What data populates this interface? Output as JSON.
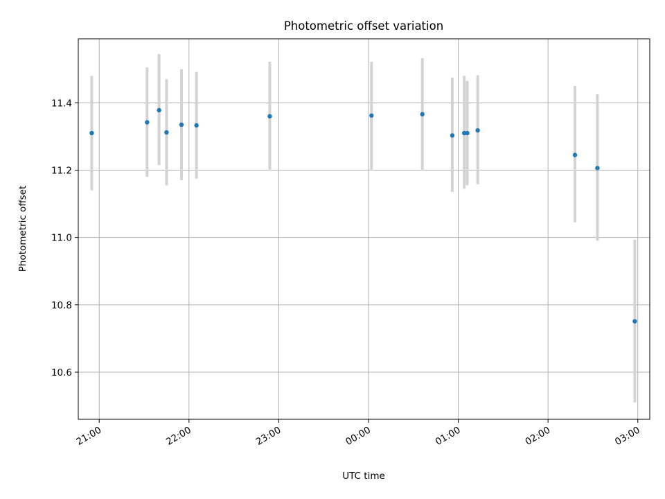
{
  "chart_data": {
    "type": "scatter",
    "title": "Photometric offset variation",
    "xlabel": "UTC time",
    "ylabel": "Photometric offset",
    "x_ticks": [
      "21:00",
      "22:00",
      "23:00",
      "00:00",
      "01:00",
      "02:00",
      "03:00"
    ],
    "x_tick_values": [
      "21:00",
      "22:00",
      "23:00",
      "00:00",
      "01:00",
      "02:00",
      "03:00"
    ],
    "xlim": [
      "20:46",
      "03:08"
    ],
    "y_ticks": [
      "10.6",
      "10.8",
      "11.0",
      "11.2",
      "11.4"
    ],
    "y_tick_values": [
      10.6,
      10.8,
      11.0,
      11.2,
      11.4
    ],
    "ylim": [
      10.46,
      11.59
    ],
    "grid": true,
    "colors": {
      "points": "#1f77b4",
      "errorbars": "#d3d3d3",
      "grid": "#b0b0b0"
    },
    "series": [
      {
        "points": [
          {
            "x": "20:55",
            "y": 11.31,
            "yerr_low": 11.14,
            "yerr_high": 11.48
          },
          {
            "x": "21:32",
            "y": 11.342,
            "yerr_low": 11.18,
            "yerr_high": 11.505
          },
          {
            "x": "21:40",
            "y": 11.378,
            "yerr_low": 11.215,
            "yerr_high": 11.545
          },
          {
            "x": "21:45",
            "y": 11.312,
            "yerr_low": 11.155,
            "yerr_high": 11.47
          },
          {
            "x": "21:55",
            "y": 11.335,
            "yerr_low": 11.17,
            "yerr_high": 11.5
          },
          {
            "x": "22:05",
            "y": 11.333,
            "yerr_low": 11.175,
            "yerr_high": 11.492
          },
          {
            "x": "22:54",
            "y": 11.36,
            "yerr_low": 11.2,
            "yerr_high": 11.522
          },
          {
            "x": "00:02",
            "y": 11.362,
            "yerr_low": 11.2,
            "yerr_high": 11.522
          },
          {
            "x": "00:36",
            "y": 11.366,
            "yerr_low": 11.2,
            "yerr_high": 11.532
          },
          {
            "x": "00:56",
            "y": 11.303,
            "yerr_low": 11.135,
            "yerr_high": 11.475
          },
          {
            "x": "01:04",
            "y": 11.31,
            "yerr_low": 11.145,
            "yerr_high": 11.48
          },
          {
            "x": "01:06",
            "y": 11.31,
            "yerr_low": 11.155,
            "yerr_high": 11.465
          },
          {
            "x": "01:13",
            "y": 11.318,
            "yerr_low": 11.158,
            "yerr_high": 11.482
          },
          {
            "x": "02:18",
            "y": 11.245,
            "yerr_low": 11.045,
            "yerr_high": 11.45
          },
          {
            "x": "02:33",
            "y": 11.206,
            "yerr_low": 10.99,
            "yerr_high": 11.425
          },
          {
            "x": "02:58",
            "y": 10.751,
            "yerr_low": 10.51,
            "yerr_high": 10.993
          }
        ]
      }
    ]
  }
}
